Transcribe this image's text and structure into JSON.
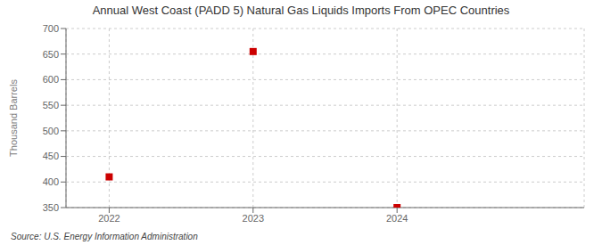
{
  "chart_data": {
    "type": "scatter",
    "title": "Annual West Coast (PADD 5) Natural Gas Liquids Imports From OPEC Countries",
    "ylabel": "Thousand Barrels",
    "annotations": [
      "Source: U.S. Energy Information Administration"
    ],
    "x": [
      2022,
      2023,
      2024
    ],
    "values": [
      410,
      655,
      350
    ],
    "color": "#CC0000",
    "marker": "square",
    "xlim": [
      2021.7,
      2025.3
    ],
    "xticks": [
      2022,
      2023,
      2024
    ],
    "ylim": [
      350,
      700
    ],
    "yticks": [
      350,
      400,
      450,
      500,
      550,
      600,
      650,
      700
    ],
    "grid": true
  }
}
